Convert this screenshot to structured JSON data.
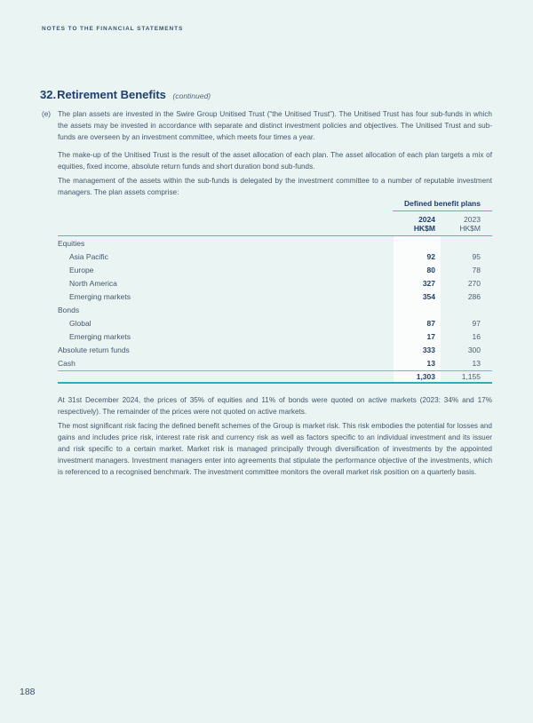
{
  "header": {
    "running_head": "NOTES TO THE FINANCIAL STATEMENTS"
  },
  "section": {
    "number": "32.",
    "title": "Retirement Benefits",
    "suffix": "(continued)"
  },
  "paragraphs": {
    "e_label": "(e)",
    "e_text": "The plan assets are invested in the Swire Group Unitised Trust (“the Unitised Trust”). The Unitised Trust has four sub-funds in which the assets may be invested in accordance with separate and distinct investment policies and objectives. The Unitised Trust and sub-funds are overseen by an investment committee, which meets four times a year.",
    "p2": "The make-up of the Unitised Trust is the result of the asset allocation of each plan. The asset allocation of each plan targets a mix of equities, fixed income, absolute return funds and short duration bond sub-funds.",
    "p3": "The management of the assets within the sub-funds is delegated by the investment committee to a number of reputable investment managers. The plan assets comprise:",
    "p4": "At 31st December 2024, the prices of 35% of equities and 11% of bonds were quoted on active markets (2023: 34% and 17% respectively). The remainder of the prices were not quoted on active markets.",
    "p5": "The most significant risk facing the defined benefit schemes of the Group is market risk. This risk embodies the potential for losses and gains and includes price risk, interest rate risk and currency risk as well as factors specific to an individual investment and its issuer and risk specific to a certain market. Market risk is managed principally through diversification of investments by the appointed investment managers. Investment managers enter into agreements that stipulate the performance objective of the investments, which is referenced to a recognised benchmark. The investment committee monitors the overall market risk position on a quarterly basis."
  },
  "chart_data": {
    "type": "table",
    "title": "Defined benefit plans",
    "columns": [
      "2024 HK$M",
      "2023 HK$M"
    ],
    "rows": [
      {
        "label": "Equities",
        "v2024": null,
        "v2023": null
      },
      {
        "label": "Asia Pacific",
        "v2024": 92,
        "v2023": 95
      },
      {
        "label": "Europe",
        "v2024": 80,
        "v2023": 78
      },
      {
        "label": "North America",
        "v2024": 327,
        "v2023": 270
      },
      {
        "label": "Emerging markets",
        "v2024": 354,
        "v2023": 286
      },
      {
        "label": "Bonds",
        "v2024": null,
        "v2023": null
      },
      {
        "label": "Global",
        "v2024": 87,
        "v2023": 97
      },
      {
        "label": "Emerging markets",
        "v2024": 17,
        "v2023": 16
      },
      {
        "label": "Absolute return funds",
        "v2024": 333,
        "v2023": 300
      },
      {
        "label": "Cash",
        "v2024": 13,
        "v2023": 13
      }
    ],
    "total": {
      "v2024": 1303,
      "v2023": 1155
    }
  },
  "table": {
    "group_header": "Defined benefit plans",
    "columns": [
      {
        "year": "2024",
        "unit": "HK$M"
      },
      {
        "year": "2023",
        "unit": "HK$M"
      }
    ],
    "rows": [
      {
        "label": "Equities",
        "v2024": "",
        "v2023": ""
      },
      {
        "label": "Asia Pacific",
        "v2024": "92",
        "v2023": "95"
      },
      {
        "label": "Europe",
        "v2024": "80",
        "v2023": "78"
      },
      {
        "label": "North America",
        "v2024": "327",
        "v2023": "270"
      },
      {
        "label": "Emerging markets",
        "v2024": "354",
        "v2023": "286"
      },
      {
        "label": "Bonds",
        "v2024": "",
        "v2023": ""
      },
      {
        "label": "Global",
        "v2024": "87",
        "v2023": "97"
      },
      {
        "label": "Emerging markets",
        "v2024": "17",
        "v2023": "16"
      },
      {
        "label": "Absolute return funds",
        "v2024": "333",
        "v2023": "300"
      },
      {
        "label": "Cash",
        "v2024": "13",
        "v2023": "13"
      }
    ],
    "total": {
      "v2024": "1,303",
      "v2023": "1,155"
    }
  },
  "footer": {
    "page_number": "188"
  },
  "colors": {
    "page_background": "#eaf4f3",
    "navy": "#1d3e6e",
    "body_text": "#42566a",
    "teal_rule": "#2fb2c4",
    "highlight_band": "#fbfdfd"
  }
}
